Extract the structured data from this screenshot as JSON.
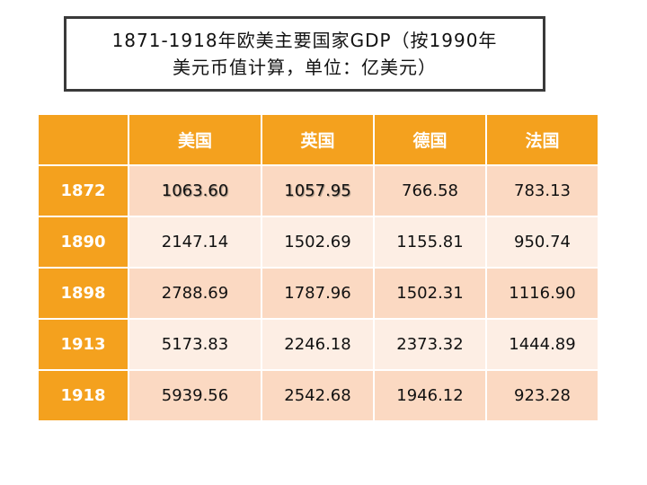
{
  "title": {
    "line1": "1871-1918年欧美主要国家GDP（按1990年",
    "line2": "美元币值计算，单位：亿美元）"
  },
  "table": {
    "corner": "",
    "columns": [
      "美国",
      "英国",
      "德国",
      "法国"
    ],
    "rows": [
      {
        "year": "1872",
        "values": [
          "1063.60",
          "1057.95",
          "766.58",
          "783.13"
        ]
      },
      {
        "year": "1890",
        "values": [
          "2147.14",
          "1502.69",
          "1155.81",
          "950.74"
        ]
      },
      {
        "year": "1898",
        "values": [
          "2788.69",
          "1787.96",
          "1502.31",
          "1116.90"
        ]
      },
      {
        "year": "1913",
        "values": [
          "5173.83",
          "2246.18",
          "2373.32",
          "1444.89"
        ]
      },
      {
        "year": "1918",
        "values": [
          "5939.56",
          "2542.68",
          "1946.12",
          "923.28"
        ]
      }
    ]
  },
  "colors": {
    "header_orange": "#f4a11e",
    "row_odd": "#fbd9c2",
    "row_even": "#fdeee4",
    "title_border": "#3a3a3a"
  }
}
